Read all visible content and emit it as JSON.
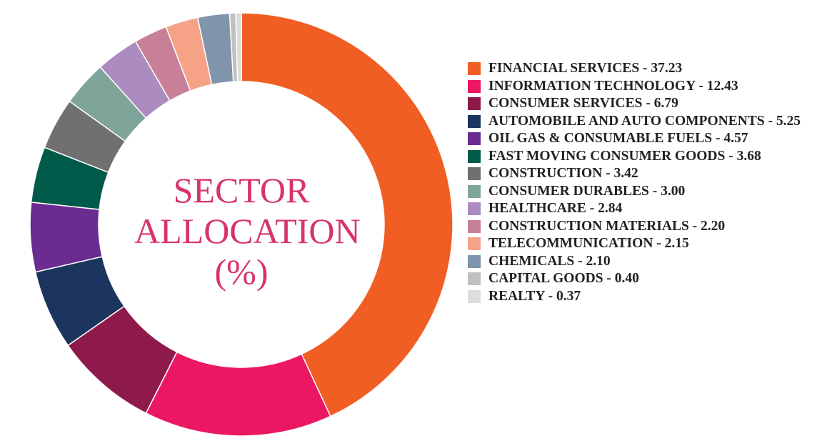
{
  "chart_data": {
    "type": "donut",
    "title": "SECTOR ALLOCATION (%)",
    "categories": [
      "FINANCIAL SERVICES - 37.23",
      "INFORMATION TECHNOLOGY - 12.43",
      "CONSUMER SERVICES - 6.79",
      "AUTOMOBILE AND AUTO COMPONENTS - 5.25",
      "OIL GAS & CONSUMABLE FUELS - 4.57",
      "FAST MOVING CONSUMER GOODS - 3.68",
      "CONSTRUCTION - 3.42",
      "CONSUMER DURABLES - 3.00",
      "HEALTHCARE - 2.84",
      "CONSTRUCTION MATERIALS - 2.20",
      "TELECOMMUNICATION - 2.15",
      "CHEMICALS - 2.10",
      "CAPITAL GOODS - 0.40",
      "REALTY - 0.37"
    ],
    "values": [
      37.23,
      12.43,
      6.79,
      5.25,
      4.57,
      3.68,
      3.42,
      3.0,
      2.84,
      2.2,
      2.15,
      2.1,
      0.4,
      0.37
    ],
    "colors": [
      "#f05e23",
      "#ec1763",
      "#8e1a4b",
      "#1b355e",
      "#6b2c91",
      "#005a4a",
      "#707070",
      "#7fa59a",
      "#ab8bc0",
      "#c88098",
      "#f6a287",
      "#8094ab",
      "#c0c0c0",
      "#dcdcdc"
    ]
  }
}
